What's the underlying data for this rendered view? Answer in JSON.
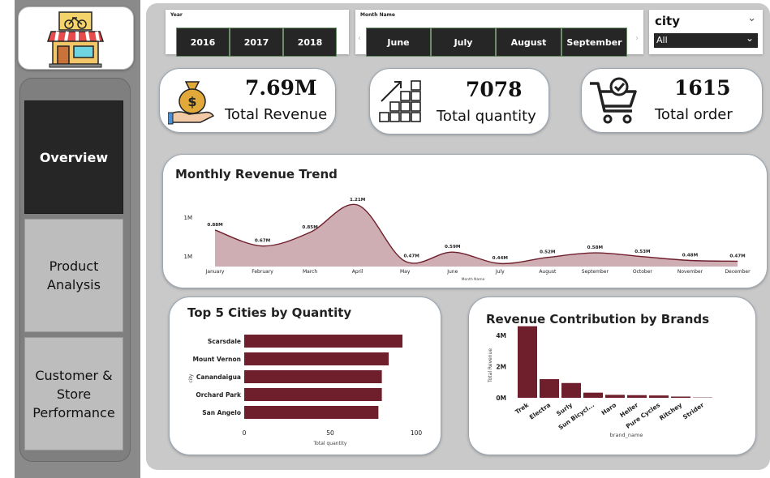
{
  "colors": {
    "accent": "#6f1f2b",
    "area_fill": "#c7a0a6",
    "nav_active": "#262626"
  },
  "nav": {
    "items": [
      {
        "label": "Overview",
        "active": true
      },
      {
        "label": "Product Analysis",
        "active": false
      },
      {
        "label": "Customer & Store Performance",
        "active": false
      }
    ]
  },
  "filters": {
    "year": {
      "title": "Year",
      "options": [
        "2016",
        "2017",
        "2018"
      ]
    },
    "month": {
      "title": "Month Name",
      "options": [
        "June",
        "July",
        "August",
        "September"
      ]
    },
    "city": {
      "title": "city",
      "selected": "All"
    }
  },
  "kpis": [
    {
      "value": "7.69M",
      "label": "Total Revenue",
      "icon": "money-bag-icon"
    },
    {
      "value": "7078",
      "label": "Total quantity",
      "icon": "boxes-icon"
    },
    {
      "value": "1615",
      "label": "Total order",
      "icon": "shopping-cart-icon"
    }
  ],
  "chart_data": [
    {
      "type": "area",
      "title": "Monthly Revenue Trend",
      "xlabel": "Month Name",
      "ylabel": "",
      "y_ticks": [
        "1M",
        "1M"
      ],
      "categories": [
        "January",
        "February",
        "March",
        "April",
        "May",
        "June",
        "July",
        "August",
        "September",
        "October",
        "November",
        "December"
      ],
      "values": [
        0.88,
        0.67,
        0.85,
        1.21,
        0.47,
        0.59,
        0.44,
        0.52,
        0.58,
        0.53,
        0.48,
        0.47
      ],
      "data_labels": [
        "0.88M",
        "0.67M",
        "0.85M",
        "1.21M",
        "0.47M",
        "0.59M",
        "0.44M",
        "0.52M",
        "0.58M",
        "0.53M",
        "0.48M",
        "0.47M"
      ]
    },
    {
      "type": "bar",
      "orientation": "horizontal",
      "title": "Top 5 Cities by Quantity",
      "xlabel": "Total quantity",
      "ylabel": "city",
      "categories": [
        "Scarsdale",
        "Mount Vernon",
        "Canandaigua",
        "Orchard Park",
        "San Angelo"
      ],
      "values": [
        92,
        84,
        80,
        80,
        78
      ],
      "x_ticks": [
        "0",
        "50",
        "100"
      ],
      "xlim": [
        0,
        100
      ]
    },
    {
      "type": "bar",
      "title": "Revenue Contribution by Brands",
      "xlabel": "brand_name",
      "ylabel": "Total Revenue",
      "categories": [
        "Trek",
        "Electra",
        "Surly",
        "Sun Bicycl...",
        "Haro",
        "Heller",
        "Pure Cycles",
        "Ritchey",
        "Strider"
      ],
      "values": [
        4.6,
        1.2,
        0.95,
        0.33,
        0.19,
        0.17,
        0.15,
        0.08,
        0.02
      ],
      "y_ticks": [
        "0M",
        "2M",
        "4M"
      ],
      "ylim": [
        0,
        5
      ]
    }
  ]
}
